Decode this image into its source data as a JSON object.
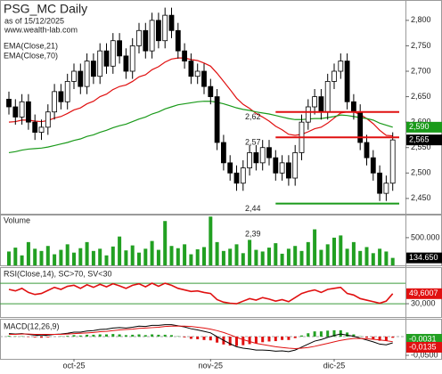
{
  "chart_data": [
    {
      "type": "candlestick",
      "title": "PSG_MC Daily",
      "subtitle": "as of 15/12/2025",
      "source": "www.wealth-lab.com",
      "x_labels": [
        {
          "index": 10,
          "label": "oct-25"
        },
        {
          "index": 31,
          "label": "nov-25"
        },
        {
          "index": 50,
          "label": "dic-25"
        }
      ],
      "open": [
        2.645,
        2.63,
        2.61,
        2.64,
        2.6,
        2.58,
        2.59,
        2.62,
        2.66,
        2.64,
        2.68,
        2.7,
        2.67,
        2.72,
        2.69,
        2.74,
        2.71,
        2.76,
        2.73,
        2.7,
        2.75,
        2.78,
        2.74,
        2.8,
        2.76,
        2.81,
        2.78,
        2.74,
        2.72,
        2.69,
        2.7,
        2.67,
        2.65,
        2.56,
        2.52,
        2.5,
        2.48,
        2.51,
        2.54,
        2.52,
        2.55,
        2.53,
        2.5,
        2.52,
        2.49,
        2.54,
        2.6,
        2.63,
        2.65,
        2.62,
        2.68,
        2.7,
        2.72,
        2.64,
        2.62,
        2.56,
        2.53,
        2.5,
        2.46,
        2.48
      ],
      "high": [
        2.66,
        2.645,
        2.655,
        2.655,
        2.615,
        2.605,
        2.635,
        2.675,
        2.675,
        2.695,
        2.715,
        2.715,
        2.735,
        2.735,
        2.755,
        2.755,
        2.775,
        2.775,
        2.745,
        2.765,
        2.795,
        2.795,
        2.815,
        2.815,
        2.825,
        2.825,
        2.795,
        2.755,
        2.735,
        2.715,
        2.715,
        2.685,
        2.665,
        2.575,
        2.535,
        2.515,
        2.525,
        2.555,
        2.555,
        2.565,
        2.565,
        2.545,
        2.535,
        2.535,
        2.555,
        2.615,
        2.645,
        2.665,
        2.665,
        2.695,
        2.715,
        2.735,
        2.735,
        2.655,
        2.635,
        2.575,
        2.545,
        2.515,
        2.495,
        2.58
      ],
      "low": [
        2.615,
        2.595,
        2.595,
        2.585,
        2.565,
        2.565,
        2.575,
        2.605,
        2.625,
        2.625,
        2.665,
        2.655,
        2.655,
        2.675,
        2.675,
        2.695,
        2.695,
        2.715,
        2.685,
        2.685,
        2.735,
        2.725,
        2.725,
        2.745,
        2.745,
        2.765,
        2.725,
        2.705,
        2.675,
        2.675,
        2.655,
        2.635,
        2.545,
        2.505,
        2.485,
        2.465,
        2.465,
        2.495,
        2.505,
        2.505,
        2.515,
        2.485,
        2.485,
        2.475,
        2.475,
        2.525,
        2.585,
        2.615,
        2.605,
        2.605,
        2.665,
        2.685,
        2.625,
        2.605,
        2.545,
        2.515,
        2.485,
        2.445,
        2.445,
        2.465
      ],
      "close": [
        2.63,
        2.61,
        2.64,
        2.6,
        2.58,
        2.59,
        2.62,
        2.66,
        2.64,
        2.68,
        2.7,
        2.67,
        2.72,
        2.69,
        2.74,
        2.71,
        2.76,
        2.73,
        2.7,
        2.75,
        2.78,
        2.74,
        2.8,
        2.76,
        2.81,
        2.78,
        2.74,
        2.72,
        2.69,
        2.7,
        2.67,
        2.65,
        2.56,
        2.52,
        2.5,
        2.48,
        2.51,
        2.54,
        2.52,
        2.55,
        2.53,
        2.5,
        2.52,
        2.49,
        2.54,
        2.6,
        2.63,
        2.65,
        2.62,
        2.68,
        2.7,
        2.72,
        2.64,
        2.62,
        2.56,
        2.53,
        2.5,
        2.46,
        2.48,
        2.565
      ],
      "close_label": "2,565",
      "series": [
        {
          "name": "EMA(Close,21)",
          "color": "#e01010",
          "values": [
            2.6,
            2.601,
            2.604,
            2.604,
            2.602,
            2.601,
            2.603,
            2.608,
            2.611,
            2.617,
            2.624,
            2.628,
            2.636,
            2.641,
            2.65,
            2.655,
            2.664,
            2.67,
            2.673,
            2.68,
            2.689,
            2.693,
            2.703,
            2.709,
            2.718,
            2.724,
            2.726,
            2.726,
            2.723,
            2.721,
            2.716,
            2.71,
            2.696,
            2.68,
            2.664,
            2.647,
            2.635,
            2.627,
            2.617,
            2.61,
            2.602,
            2.592,
            2.585,
            2.576,
            2.574,
            2.576,
            2.581,
            2.587,
            2.59,
            2.598,
            2.608,
            2.618,
            2.62,
            2.62,
            2.615,
            2.607,
            2.597,
            2.584,
            2.574,
            2.573
          ]
        },
        {
          "name": "EMA(Close,70)",
          "color": "#1a9a1a",
          "values": [
            2.54,
            2.542,
            2.545,
            2.547,
            2.548,
            2.549,
            2.551,
            2.554,
            2.557,
            2.56,
            2.564,
            2.567,
            2.572,
            2.575,
            2.58,
            2.584,
            2.589,
            2.593,
            2.596,
            2.601,
            2.606,
            2.61,
            2.616,
            2.62,
            2.626,
            2.63,
            2.634,
            2.636,
            2.638,
            2.64,
            2.641,
            2.641,
            2.639,
            2.636,
            2.632,
            2.628,
            2.625,
            2.623,
            2.62,
            2.618,
            2.616,
            2.613,
            2.61,
            2.607,
            2.605,
            2.605,
            2.606,
            2.607,
            2.607,
            2.609,
            2.611,
            2.614,
            2.613,
            2.611,
            2.609,
            2.607,
            2.604,
            2.598,
            2.594,
            2.59
          ],
          "last_value_label": "2,590"
        }
      ],
      "levels": [
        {
          "value": 2.62,
          "label": "2,62",
          "color": "#e01010"
        },
        {
          "value": 2.57,
          "label": "2,57",
          "color": "#e01010"
        },
        {
          "value": 2.44,
          "label": "2,44",
          "color": "#1a9a1a"
        },
        {
          "value": 2.39,
          "label": "2,39"
        }
      ],
      "ylim": [
        2.42,
        2.84
      ],
      "yticks": [
        {
          "value": 2.45,
          "label": "2,450"
        },
        {
          "value": 2.5,
          "label": "2,500"
        },
        {
          "value": 2.55,
          "label": "2,550"
        },
        {
          "value": 2.6,
          "label": "2,600"
        },
        {
          "value": 2.65,
          "label": "2,650"
        },
        {
          "value": 2.7,
          "label": "2,700"
        },
        {
          "value": 2.75,
          "label": "2,750"
        },
        {
          "value": 2.8,
          "label": "2,800"
        }
      ]
    },
    {
      "type": "bar",
      "title": "Volume",
      "color": "#22a022",
      "values": [
        250000,
        320000,
        180000,
        420000,
        300000,
        260000,
        350000,
        200000,
        280000,
        380000,
        230000,
        310000,
        420000,
        260000,
        300000,
        180000,
        340000,
        520000,
        270000,
        360000,
        230000,
        300000,
        440000,
        280000,
        800000,
        350000,
        310000,
        380000,
        200000,
        290000,
        330000,
        880000,
        420000,
        260000,
        300000,
        380000,
        220000,
        460000,
        280000,
        250000,
        320000,
        400000,
        210000,
        300000,
        350000,
        260000,
        420000,
        650000,
        280000,
        380000,
        500000,
        540000,
        300000,
        420000,
        260000,
        330000,
        220000,
        300000,
        250000,
        134650
      ],
      "last_value_label": "134.650",
      "ylim": [
        0,
        900000
      ],
      "yticks": [
        {
          "value": 500000,
          "label": "500.000"
        }
      ]
    },
    {
      "type": "line",
      "title": "RSI(Close,14), SC>70, SV<30",
      "series": [
        {
          "color": "#e01010",
          "values": [
            58,
            55,
            60,
            52,
            48,
            50,
            56,
            62,
            58,
            64,
            66,
            60,
            67,
            62,
            68,
            63,
            69,
            65,
            60,
            66,
            69,
            63,
            70,
            64,
            70,
            66,
            60,
            57,
            54,
            55,
            52,
            50,
            38,
            33,
            31,
            30,
            35,
            40,
            37,
            42,
            39,
            35,
            38,
            34,
            42,
            50,
            54,
            57,
            52,
            58,
            60,
            62,
            50,
            47,
            40,
            37,
            34,
            31,
            35,
            49.6007
          ],
          "last_value_label": "49,6007"
        }
      ],
      "bands": [
        30,
        70
      ],
      "band_color": "#3a9a3a",
      "ylim": [
        4,
        98
      ],
      "yticks": [
        {
          "value": 30,
          "label": "30,000"
        }
      ]
    },
    {
      "type": "macd",
      "title": "MACD(12,26,9)",
      "series": [
        {
          "color": "#000000",
          "values": [
            0.008,
            0.007,
            0.008,
            0.006,
            0.004,
            0.003,
            0.004,
            0.006,
            0.007,
            0.009,
            0.012,
            0.012,
            0.015,
            0.016,
            0.019,
            0.02,
            0.023,
            0.024,
            0.023,
            0.025,
            0.028,
            0.027,
            0.03,
            0.03,
            0.032,
            0.032,
            0.029,
            0.026,
            0.021,
            0.018,
            0.014,
            0.01,
            0.0,
            -0.01,
            -0.019,
            -0.027,
            -0.031,
            -0.033,
            -0.036,
            -0.036,
            -0.037,
            -0.039,
            -0.038,
            -0.04,
            -0.036,
            -0.028,
            -0.02,
            -0.012,
            -0.008,
            -0.002,
            0.003,
            0.007,
            0.004,
            0.001,
            -0.004,
            -0.009,
            -0.014,
            -0.02,
            -0.022,
            -0.0166
          ]
        },
        {
          "color": "#e01010",
          "values": [
            0.006,
            0.006,
            0.007,
            0.007,
            0.006,
            0.006,
            0.006,
            0.006,
            0.006,
            0.007,
            0.008,
            0.009,
            0.01,
            0.011,
            0.013,
            0.014,
            0.016,
            0.018,
            0.019,
            0.02,
            0.022,
            0.023,
            0.024,
            0.025,
            0.027,
            0.028,
            0.028,
            0.028,
            0.027,
            0.025,
            0.023,
            0.02,
            0.016,
            0.011,
            0.005,
            -0.002,
            -0.008,
            -0.013,
            -0.018,
            -0.021,
            -0.024,
            -0.027,
            -0.029,
            -0.031,
            -0.032,
            -0.031,
            -0.029,
            -0.026,
            -0.022,
            -0.018,
            -0.014,
            -0.01,
            -0.007,
            -0.005,
            -0.005,
            -0.006,
            -0.007,
            -0.009,
            -0.011,
            -0.0135
          ],
          "last_value_label": "-0,0135"
        }
      ],
      "histogram": {
        "up_color": "#22a022",
        "down_color": "#e01010",
        "last_value_label": "-0,0031",
        "values": [
          0.002,
          0.001,
          0.001,
          -0.001,
          -0.002,
          -0.003,
          -0.002,
          0,
          0.001,
          0.002,
          0.004,
          0.003,
          0.005,
          0.005,
          0.006,
          0.006,
          0.007,
          0.006,
          0.004,
          0.005,
          0.006,
          0.004,
          0.006,
          0.005,
          0.005,
          0.004,
          0.001,
          -0.002,
          -0.006,
          -0.007,
          -0.009,
          -0.01,
          -0.016,
          -0.021,
          -0.024,
          -0.025,
          -0.023,
          -0.02,
          -0.018,
          -0.015,
          -0.013,
          -0.012,
          -0.009,
          -0.009,
          -0.004,
          0.003,
          0.009,
          0.014,
          0.014,
          0.016,
          0.017,
          0.017,
          0.011,
          0.006,
          0.001,
          -0.003,
          -0.007,
          -0.011,
          -0.011,
          -0.0031
        ]
      },
      "ylim": [
        -0.0571,
        0.0429
      ],
      "yticks": [
        {
          "value": -0.05,
          "label": "-0,0500"
        }
      ]
    }
  ]
}
